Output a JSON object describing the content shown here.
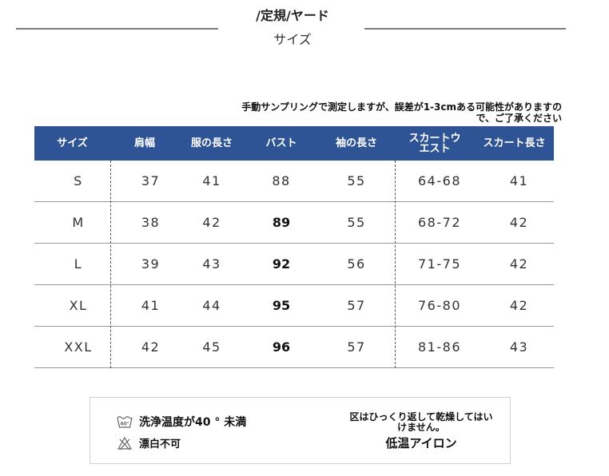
{
  "header": {
    "title": "/定規/ヤード",
    "subtitle": "サイズ"
  },
  "note": {
    "line1": "手動サンプリングで測定しますが、誤差が1-3cmある可能性がありますの",
    "line2": "で、ご了承ください"
  },
  "table": {
    "headers": [
      "サイズ",
      "肩幅",
      "服の長さ",
      "バスト",
      "袖の長さ",
      "スカートウエスト",
      "スカート長さ"
    ],
    "rows": [
      [
        "S",
        "37",
        "41",
        "88",
        "55",
        "64-68",
        "41"
      ],
      [
        "M",
        "38",
        "42",
        "89",
        "55",
        "68-72",
        "42"
      ],
      [
        "L",
        "39",
        "43",
        "92",
        "56",
        "71-75",
        "42"
      ],
      [
        "XL",
        "41",
        "44",
        "95",
        "57",
        "76-80",
        "42"
      ],
      [
        "XXL",
        "42",
        "45",
        "96",
        "57",
        "81-86",
        "43"
      ]
    ]
  },
  "care": {
    "wash": "洗浄温度が40 ° 未満",
    "wash_icon_label": "40°",
    "bleach": "漂白不可",
    "tumble_line1": "区はひっくり返して乾燥してはい",
    "tumble_line2": "けません。",
    "iron": "低温アイロン"
  },
  "colors": {
    "header_bg": "#2f5496",
    "header_text": "#ffffff"
  }
}
